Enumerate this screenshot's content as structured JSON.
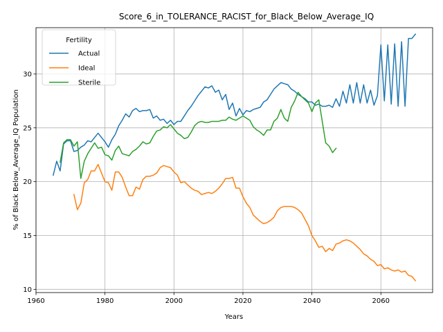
{
  "chart_data": {
    "type": "line",
    "title": "Score_6_in_TOLERANCE_RACIST_for_Black_Below_Average_IQ",
    "xlabel": "Years",
    "ylabel": "% of Black Below_Average_IQ Population",
    "xlim": [
      1960,
      2075
    ],
    "ylim": [
      9.7,
      34.3
    ],
    "x_ticks": [
      1960,
      1980,
      2000,
      2020,
      2040,
      2060
    ],
    "y_ticks": [
      10,
      15,
      20,
      25,
      30
    ],
    "grid": true,
    "legend": {
      "title": "Fertility",
      "placement": "top-left"
    },
    "series": [
      {
        "name": "Actual",
        "color": "#1f77b4",
        "points": [
          [
            1965,
            20.6
          ],
          [
            1966,
            21.9
          ],
          [
            1967,
            21.0
          ],
          [
            1968,
            23.5
          ],
          [
            1969,
            23.8
          ],
          [
            1970,
            23.8
          ],
          [
            1971,
            22.8
          ],
          [
            1972,
            22.9
          ],
          [
            1973,
            23.2
          ],
          [
            1974,
            23.4
          ],
          [
            1975,
            23.8
          ],
          [
            1976,
            23.7
          ],
          [
            1977,
            24.1
          ],
          [
            1978,
            24.5
          ],
          [
            1979,
            24.1
          ],
          [
            1980,
            23.7
          ],
          [
            1981,
            23.2
          ],
          [
            1982,
            23.9
          ],
          [
            1983,
            24.4
          ],
          [
            1984,
            25.2
          ],
          [
            1985,
            25.7
          ],
          [
            1986,
            26.3
          ],
          [
            1987,
            26.0
          ],
          [
            1988,
            26.6
          ],
          [
            1989,
            26.8
          ],
          [
            1990,
            26.5
          ],
          [
            1991,
            26.6
          ],
          [
            1992,
            26.6
          ],
          [
            1993,
            26.7
          ],
          [
            1994,
            25.9
          ],
          [
            1995,
            26.1
          ],
          [
            1996,
            25.7
          ],
          [
            1997,
            25.8
          ],
          [
            1998,
            25.4
          ],
          [
            1999,
            25.7
          ],
          [
            2000,
            25.3
          ],
          [
            2001,
            25.6
          ],
          [
            2002,
            25.6
          ],
          [
            2003,
            26.1
          ],
          [
            2004,
            26.6
          ],
          [
            2005,
            27.0
          ],
          [
            2006,
            27.5
          ],
          [
            2007,
            28.0
          ],
          [
            2008,
            28.4
          ],
          [
            2009,
            28.8
          ],
          [
            2010,
            28.7
          ],
          [
            2011,
            28.9
          ],
          [
            2012,
            28.3
          ],
          [
            2013,
            28.5
          ],
          [
            2014,
            27.6
          ],
          [
            2015,
            28.1
          ],
          [
            2016,
            26.7
          ],
          [
            2017,
            27.3
          ],
          [
            2018,
            26.1
          ],
          [
            2019,
            26.8
          ],
          [
            2020,
            26.2
          ],
          [
            2021,
            26.6
          ],
          [
            2022,
            26.5
          ],
          [
            2023,
            26.7
          ],
          [
            2024,
            26.8
          ],
          [
            2025,
            26.9
          ],
          [
            2026,
            27.4
          ],
          [
            2027,
            27.6
          ],
          [
            2028,
            28.1
          ],
          [
            2029,
            28.6
          ],
          [
            2030,
            28.9
          ],
          [
            2031,
            29.2
          ],
          [
            2032,
            29.1
          ],
          [
            2033,
            29.0
          ],
          [
            2034,
            28.6
          ],
          [
            2035,
            28.4
          ],
          [
            2036,
            28.1
          ],
          [
            2037,
            27.9
          ],
          [
            2038,
            27.7
          ],
          [
            2039,
            27.4
          ],
          [
            2040,
            27.4
          ],
          [
            2041,
            27.1
          ],
          [
            2042,
            27.2
          ],
          [
            2043,
            27.0
          ],
          [
            2044,
            27.0
          ],
          [
            2045,
            27.1
          ],
          [
            2046,
            26.9
          ],
          [
            2047,
            27.7
          ],
          [
            2048,
            27.0
          ],
          [
            2049,
            28.4
          ],
          [
            2050,
            27.3
          ],
          [
            2051,
            29.0
          ],
          [
            2052,
            27.3
          ],
          [
            2053,
            29.2
          ],
          [
            2054,
            27.3
          ],
          [
            2055,
            29.0
          ],
          [
            2056,
            27.3
          ],
          [
            2057,
            28.5
          ],
          [
            2058,
            27.1
          ],
          [
            2059,
            28.0
          ],
          [
            2060,
            32.7
          ],
          [
            2061,
            27.5
          ],
          [
            2062,
            32.7
          ],
          [
            2063,
            27.2
          ],
          [
            2064,
            32.8
          ],
          [
            2065,
            27.0
          ],
          [
            2066,
            33.0
          ],
          [
            2067,
            27.0
          ],
          [
            2068,
            33.3
          ],
          [
            2069,
            33.3
          ],
          [
            2070,
            33.7
          ]
        ]
      },
      {
        "name": "Ideal",
        "color": "#ff7f0e",
        "points": [
          [
            1971,
            18.8
          ],
          [
            1972,
            17.4
          ],
          [
            1973,
            18.0
          ],
          [
            1974,
            19.9
          ],
          [
            1975,
            20.2
          ],
          [
            1976,
            21.0
          ],
          [
            1977,
            21.0
          ],
          [
            1978,
            21.6
          ],
          [
            1979,
            20.8
          ],
          [
            1980,
            20.0
          ],
          [
            1981,
            19.9
          ],
          [
            1982,
            19.2
          ],
          [
            1983,
            20.9
          ],
          [
            1984,
            20.9
          ],
          [
            1985,
            20.4
          ],
          [
            1986,
            19.5
          ],
          [
            1987,
            18.7
          ],
          [
            1988,
            18.7
          ],
          [
            1989,
            19.5
          ],
          [
            1990,
            19.3
          ],
          [
            1991,
            20.2
          ],
          [
            1992,
            20.5
          ],
          [
            1993,
            20.5
          ],
          [
            1994,
            20.6
          ],
          [
            1995,
            20.8
          ],
          [
            1996,
            21.3
          ],
          [
            1997,
            21.5
          ],
          [
            1998,
            21.4
          ],
          [
            1999,
            21.3
          ],
          [
            2000,
            20.9
          ],
          [
            2001,
            20.6
          ],
          [
            2002,
            19.9
          ],
          [
            2003,
            20.0
          ],
          [
            2004,
            19.7
          ],
          [
            2005,
            19.4
          ],
          [
            2006,
            19.2
          ],
          [
            2007,
            19.1
          ],
          [
            2008,
            18.8
          ],
          [
            2009,
            18.9
          ],
          [
            2010,
            19.0
          ],
          [
            2011,
            18.9
          ],
          [
            2012,
            19.1
          ],
          [
            2013,
            19.4
          ],
          [
            2014,
            19.8
          ],
          [
            2015,
            20.3
          ],
          [
            2016,
            20.3
          ],
          [
            2017,
            20.4
          ],
          [
            2018,
            19.4
          ],
          [
            2019,
            19.4
          ],
          [
            2020,
            18.6
          ],
          [
            2021,
            18.0
          ],
          [
            2022,
            17.6
          ],
          [
            2023,
            16.9
          ],
          [
            2024,
            16.6
          ],
          [
            2025,
            16.3
          ],
          [
            2026,
            16.1
          ],
          [
            2027,
            16.2
          ],
          [
            2028,
            16.4
          ],
          [
            2029,
            16.7
          ],
          [
            2030,
            17.3
          ],
          [
            2031,
            17.6
          ],
          [
            2032,
            17.7
          ],
          [
            2033,
            17.7
          ],
          [
            2034,
            17.7
          ],
          [
            2035,
            17.6
          ],
          [
            2036,
            17.4
          ],
          [
            2037,
            17.1
          ],
          [
            2038,
            16.5
          ],
          [
            2039,
            15.9
          ],
          [
            2040,
            15.0
          ],
          [
            2041,
            14.5
          ],
          [
            2042,
            13.9
          ],
          [
            2043,
            14.0
          ],
          [
            2044,
            13.5
          ],
          [
            2045,
            13.8
          ],
          [
            2046,
            13.6
          ],
          [
            2047,
            14.2
          ],
          [
            2048,
            14.3
          ],
          [
            2049,
            14.5
          ],
          [
            2050,
            14.6
          ],
          [
            2051,
            14.5
          ],
          [
            2052,
            14.3
          ],
          [
            2053,
            14.0
          ],
          [
            2054,
            13.7
          ],
          [
            2055,
            13.3
          ],
          [
            2056,
            13.1
          ],
          [
            2057,
            12.8
          ],
          [
            2058,
            12.6
          ],
          [
            2059,
            12.2
          ],
          [
            2060,
            12.3
          ],
          [
            2061,
            11.9
          ],
          [
            2062,
            12.0
          ],
          [
            2063,
            11.8
          ],
          [
            2064,
            11.7
          ],
          [
            2065,
            11.8
          ],
          [
            2066,
            11.6
          ],
          [
            2067,
            11.7
          ],
          [
            2068,
            11.3
          ],
          [
            2069,
            11.2
          ],
          [
            2070,
            10.8
          ]
        ]
      },
      {
        "name": "Sterile",
        "color": "#2ca02c",
        "points": [
          [
            1967,
            21.8
          ],
          [
            1968,
            23.6
          ],
          [
            1969,
            23.9
          ],
          [
            1970,
            23.9
          ],
          [
            1971,
            23.3
          ],
          [
            1972,
            23.7
          ],
          [
            1973,
            20.3
          ],
          [
            1974,
            21.9
          ],
          [
            1975,
            22.6
          ],
          [
            1976,
            23.1
          ],
          [
            1977,
            23.6
          ],
          [
            1978,
            23.1
          ],
          [
            1979,
            23.2
          ],
          [
            1980,
            22.5
          ],
          [
            1981,
            22.4
          ],
          [
            1982,
            22.0
          ],
          [
            1983,
            22.9
          ],
          [
            1984,
            23.3
          ],
          [
            1985,
            22.6
          ],
          [
            1986,
            22.5
          ],
          [
            1987,
            22.4
          ],
          [
            1988,
            22.8
          ],
          [
            1989,
            23.0
          ],
          [
            1990,
            23.3
          ],
          [
            1991,
            23.7
          ],
          [
            1992,
            23.5
          ],
          [
            1993,
            23.6
          ],
          [
            1994,
            24.2
          ],
          [
            1995,
            24.7
          ],
          [
            1996,
            24.8
          ],
          [
            1997,
            25.1
          ],
          [
            1998,
            25.0
          ],
          [
            1999,
            25.3
          ],
          [
            2000,
            24.9
          ],
          [
            2001,
            24.5
          ],
          [
            2002,
            24.3
          ],
          [
            2003,
            24.0
          ],
          [
            2004,
            24.1
          ],
          [
            2005,
            24.6
          ],
          [
            2006,
            25.2
          ],
          [
            2007,
            25.5
          ],
          [
            2008,
            25.6
          ],
          [
            2009,
            25.5
          ],
          [
            2010,
            25.5
          ],
          [
            2011,
            25.6
          ],
          [
            2012,
            25.6
          ],
          [
            2013,
            25.6
          ],
          [
            2014,
            25.7
          ],
          [
            2015,
            25.7
          ],
          [
            2016,
            26.0
          ],
          [
            2017,
            25.8
          ],
          [
            2018,
            25.7
          ],
          [
            2019,
            25.9
          ],
          [
            2020,
            26.1
          ],
          [
            2021,
            25.9
          ],
          [
            2022,
            25.7
          ],
          [
            2023,
            25.1
          ],
          [
            2024,
            24.8
          ],
          [
            2025,
            24.6
          ],
          [
            2026,
            24.3
          ],
          [
            2027,
            24.8
          ],
          [
            2028,
            24.8
          ],
          [
            2029,
            25.6
          ],
          [
            2030,
            25.9
          ],
          [
            2031,
            26.7
          ],
          [
            2032,
            25.9
          ],
          [
            2033,
            25.6
          ],
          [
            2034,
            26.9
          ],
          [
            2035,
            27.5
          ],
          [
            2036,
            28.3
          ],
          [
            2037,
            27.9
          ],
          [
            2038,
            27.6
          ],
          [
            2039,
            27.3
          ],
          [
            2040,
            26.5
          ],
          [
            2041,
            27.3
          ],
          [
            2042,
            27.6
          ],
          [
            2043,
            25.6
          ],
          [
            2044,
            23.6
          ],
          [
            2045,
            23.3
          ],
          [
            2046,
            22.7
          ],
          [
            2047,
            23.1
          ]
        ]
      }
    ]
  }
}
